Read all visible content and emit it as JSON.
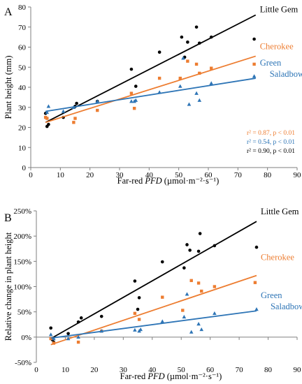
{
  "chart_data": [
    {
      "type": "scatter",
      "panel_label": "A",
      "xlabel_prefix": "Far-red ",
      "xlabel_italic": "PFD",
      "xlabel_suffix": " (µmol·m⁻²·s⁻¹)",
      "ylabel": "Plant height (mm)",
      "xlim": [
        0,
        90
      ],
      "ylim": [
        0,
        80
      ],
      "xticks": [
        0,
        10,
        20,
        30,
        40,
        50,
        60,
        70,
        80,
        90
      ],
      "yticks": [
        0,
        10,
        20,
        30,
        40,
        50,
        60,
        70,
        80
      ],
      "ytick_labels": [
        "0",
        "10",
        "20",
        "30",
        "40",
        "50",
        "60",
        "70",
        "80"
      ],
      "grid": false,
      "series": [
        {
          "name": "Little Gem",
          "color": "#000000",
          "marker": "circle",
          "points": [
            [
              5,
              27
            ],
            [
              5.5,
              20.5
            ],
            [
              6,
              21.5
            ],
            [
              11,
              25
            ],
            [
              15,
              30.5
            ],
            [
              15.5,
              32
            ],
            [
              22.5,
              33
            ],
            [
              34,
              49
            ],
            [
              35.5,
              40.5
            ],
            [
              43.5,
              57.5
            ],
            [
              51,
              65
            ],
            [
              52,
              55
            ],
            [
              53,
              62.5
            ],
            [
              56,
              70
            ],
            [
              57,
              62
            ],
            [
              61,
              65
            ],
            [
              75.5,
              64
            ]
          ],
          "fit": [
            [
              5,
              22.5
            ],
            [
              76,
              76
            ]
          ]
        },
        {
          "name": "Cherokee",
          "color": "#ED7D31",
          "marker": "square",
          "points": [
            [
              5,
              25
            ],
            [
              5.5,
              24.5
            ],
            [
              14.5,
              22.5
            ],
            [
              15,
              24.5
            ],
            [
              22.5,
              28.5
            ],
            [
              34,
              37
            ],
            [
              35,
              29.5
            ],
            [
              43.5,
              44.5
            ],
            [
              50.5,
              44.5
            ],
            [
              53,
              53
            ],
            [
              56,
              51.5
            ],
            [
              57,
              47
            ],
            [
              61,
              49.5
            ],
            [
              75.5,
              51.5
            ]
          ],
          "fit": [
            [
              5,
              22.5
            ],
            [
              76,
              55.5
            ]
          ]
        },
        {
          "name": "Green Saladbowl",
          "label_lines": [
            "Green",
            "Saladbowl"
          ],
          "color": "#2E75B6",
          "marker": "triangle",
          "points": [
            [
              5.5,
              27.5
            ],
            [
              6,
              30.5
            ],
            [
              11,
              28
            ],
            [
              14.5,
              30
            ],
            [
              22.5,
              33
            ],
            [
              34,
              33
            ],
            [
              35,
              33
            ],
            [
              35.5,
              33.5
            ],
            [
              43.5,
              37.5
            ],
            [
              50.5,
              40.5
            ],
            [
              51.5,
              54.5
            ],
            [
              53.5,
              31.5
            ],
            [
              56,
              37
            ],
            [
              57,
              33.5
            ],
            [
              61,
              42
            ],
            [
              75.5,
              45.5
            ]
          ],
          "fit": [
            [
              5,
              28
            ],
            [
              76,
              44.5
            ]
          ]
        }
      ],
      "annotations": [
        {
          "text": "r² = 0.87, p < 0.01",
          "color": "#ED7D31"
        },
        {
          "text": "r² = 0.54, p < 0.01",
          "color": "#2E75B6"
        },
        {
          "text": "r² = 0.90, p < 0.01",
          "color": "#000000"
        }
      ]
    },
    {
      "type": "scatter",
      "panel_label": "B",
      "xlabel_prefix": "Far-red ",
      "xlabel_italic": "PFD",
      "xlabel_suffix": " (µmol·m⁻²·s⁻¹)",
      "ylabel": "Relative change in plant height",
      "xlim": [
        0,
        90
      ],
      "ylim": [
        -50,
        250
      ],
      "xticks": [
        0,
        10,
        20,
        30,
        40,
        50,
        60,
        70,
        80,
        90
      ],
      "yticks": [
        -50,
        0,
        50,
        100,
        150,
        200,
        250
      ],
      "ytick_labels": [
        "-50%",
        "0%",
        "50%",
        "100%",
        "150%",
        "200%",
        "250%"
      ],
      "grid": false,
      "series": [
        {
          "name": "Little Gem",
          "color": "#000000",
          "marker": "circle",
          "points": [
            [
              5,
              18
            ],
            [
              5.5,
              -5
            ],
            [
              6,
              -10
            ],
            [
              11,
              7
            ],
            [
              14.5,
              30
            ],
            [
              15.5,
              38
            ],
            [
              22.5,
              41
            ],
            [
              34,
              111
            ],
            [
              35,
              55
            ],
            [
              35.5,
              78
            ],
            [
              43.5,
              149
            ],
            [
              51,
              137
            ],
            [
              52,
              183
            ],
            [
              53,
              172
            ],
            [
              56,
              170
            ],
            [
              56.5,
              205
            ],
            [
              61.5,
              181
            ],
            [
              76,
              178
            ]
          ],
          "fit": [
            [
              5,
              -3
            ],
            [
              76,
              229
            ]
          ]
        },
        {
          "name": "Cherokee",
          "color": "#ED7D31",
          "marker": "square",
          "points": [
            [
              5,
              -3
            ],
            [
              6,
              -12
            ],
            [
              14.5,
              -10
            ],
            [
              22.5,
              12
            ],
            [
              34,
              47
            ],
            [
              35.5,
              35
            ],
            [
              43.5,
              79
            ],
            [
              50.5,
              53
            ],
            [
              53.5,
              112
            ],
            [
              56,
              107
            ],
            [
              57,
              91
            ],
            [
              61.5,
              100
            ],
            [
              75.5,
              108
            ]
          ],
          "fit": [
            [
              5,
              -15
            ],
            [
              76,
              122
            ]
          ]
        },
        {
          "name": "Green Saladbowl",
          "label_lines": [
            "Green",
            "Saladbowl"
          ],
          "color": "#2E75B6",
          "marker": "triangle",
          "points": [
            [
              5,
              5
            ],
            [
              6,
              -3
            ],
            [
              11,
              -3
            ],
            [
              14.5,
              0
            ],
            [
              22.5,
              12
            ],
            [
              34,
              14
            ],
            [
              35.5,
              12
            ],
            [
              36,
              15
            ],
            [
              43.5,
              31
            ],
            [
              51,
              40
            ],
            [
              52,
              85
            ],
            [
              53.5,
              10
            ],
            [
              56,
              26
            ],
            [
              57,
              15
            ],
            [
              61.5,
              47
            ],
            [
              76,
              55
            ]
          ],
          "fit": [
            [
              5,
              -2
            ],
            [
              76,
              52
            ]
          ]
        }
      ],
      "annotations": []
    }
  ]
}
